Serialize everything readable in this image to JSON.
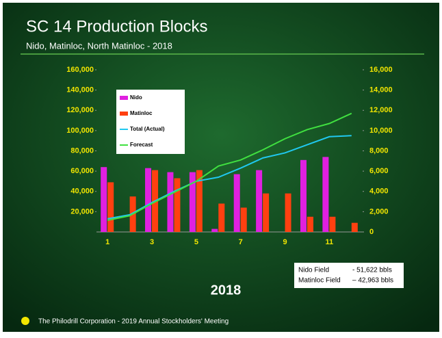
{
  "chart_data": {
    "type": "bar",
    "title": "SC 14 Production Blocks",
    "subtitle": "Nido, Matinloc, North Matinloc - 2018",
    "x_label": "2018",
    "annotations": [
      "Nido Field",
      "- 51,622 bbls",
      "Matinloc Field",
      "– 42,963 bbls"
    ],
    "footer": "The Philodrill Corporation - 2019 Annual Stockholders' Meeting",
    "categories": [
      1,
      null,
      3,
      null,
      5,
      null,
      7,
      null,
      9,
      null,
      11,
      null
    ],
    "series": [
      {
        "name": "Nido",
        "color": "#e020e0",
        "type": "bar",
        "values": [
          64000,
          0,
          63000,
          59000,
          59000,
          3000,
          57000,
          61000,
          0,
          71000,
          74000,
          0
        ]
      },
      {
        "name": "Matinloc",
        "color": "#ff4010",
        "type": "bar",
        "values": [
          49000,
          35000,
          61000,
          53000,
          61000,
          28000,
          24000,
          38000,
          38000,
          15000,
          15000,
          9000
        ]
      },
      {
        "name": "Total (Actual)",
        "color": "#20c8f0",
        "type": "line",
        "axis": "y2",
        "values": [
          1300,
          1700,
          2900,
          4000,
          5000,
          5400,
          6300,
          7300,
          7800,
          8600,
          9400,
          9500
        ]
      },
      {
        "name": "Forecast",
        "color": "#40e040",
        "type": "line",
        "axis": "y2",
        "values": [
          1150,
          1600,
          2800,
          3900,
          5000,
          6500,
          7100,
          8100,
          9200,
          10100,
          10700,
          11700
        ]
      }
    ],
    "ylim": [
      0,
      160000
    ],
    "yticks": [
      {
        "value": 20000,
        "label": "20,000"
      },
      {
        "value": 40000,
        "label": "40,000"
      },
      {
        "value": 60000,
        "label": "60,000"
      },
      {
        "value": 80000,
        "label": "80,000"
      },
      {
        "value": 100000,
        "label": "100,000"
      },
      {
        "value": 120000,
        "label": "120,000"
      },
      {
        "value": 140000,
        "label": "140,000"
      },
      {
        "value": 160000,
        "label": "160,000"
      }
    ],
    "y2lim": [
      0,
      16000
    ],
    "y2ticks": [
      0,
      {
        "value": 2000,
        "label": "2,000"
      },
      {
        "value": 4000,
        "label": "4,000"
      },
      {
        "value": 6000,
        "label": "6,000"
      },
      {
        "value": 8000,
        "label": "8,000"
      },
      {
        "value": 10000,
        "label": "10,000"
      },
      {
        "value": 12000,
        "label": "12,000"
      },
      {
        "value": 14000,
        "label": "14,000"
      },
      {
        "value": 16000,
        "label": "16,000"
      }
    ],
    "legend": "upper left"
  }
}
